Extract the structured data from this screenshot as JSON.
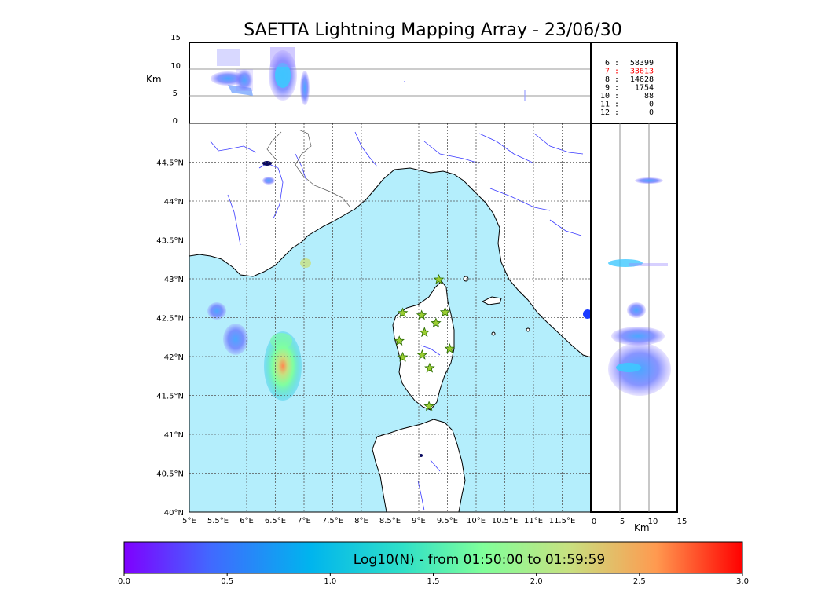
{
  "title": "SAETTA Lightning Mapping Array - 23/06/30",
  "colors": {
    "sea": "#b4eefc",
    "land": "#ffffff",
    "coast": "#000000",
    "rivers": "#3a3aff",
    "borders": "#555555",
    "grid": "#555555",
    "station_fill": "#9acd32",
    "highlight_text": "#ff0000"
  },
  "top_panel": {
    "ylabel": "Km",
    "yticks": [
      "15",
      "10",
      "5",
      "0"
    ]
  },
  "right_panel": {
    "xlabel": "Km",
    "xticks": [
      "0",
      "5",
      "10",
      "15"
    ]
  },
  "map": {
    "lon_ticks": [
      "5°E",
      "5.5°E",
      "6°E",
      "6.5°E",
      "7°E",
      "7.5°E",
      "8°E",
      "8.5°E",
      "9°E",
      "9.5°E",
      "10°E",
      "10.5°E",
      "11°E",
      "11.5°E"
    ],
    "lat_ticks": [
      "44.5°N",
      "44°N",
      "43.5°N",
      "43°N",
      "42.5°N",
      "42°N",
      "41.5°N",
      "41°N",
      "40.5°N",
      "40°N"
    ],
    "lon_range": [
      5.0,
      12.0
    ],
    "lat_range": [
      40.0,
      45.0
    ]
  },
  "stats": [
    {
      "n": "6",
      "sep": ":",
      "count": "58399",
      "highlight": false
    },
    {
      "n": "7",
      "sep": ":",
      "count": "33613",
      "highlight": true
    },
    {
      "n": "8",
      "sep": ":",
      "count": "14628",
      "highlight": false
    },
    {
      "n": "9",
      "sep": ":",
      "count": "1754",
      "highlight": false
    },
    {
      "n": "10",
      "sep": ":",
      "count": "88",
      "highlight": false
    },
    {
      "n": "11",
      "sep": ":",
      "count": "0",
      "highlight": false
    },
    {
      "n": "12",
      "sep": ":",
      "count": "0",
      "highlight": false
    }
  ],
  "colorbar": {
    "title": "Log10(N) - from 01:50:00 to 01:59:59",
    "ticks": [
      "0.0",
      "0.5",
      "1.0",
      "1.5",
      "2.0",
      "2.5",
      "3.0"
    ],
    "colors": [
      "#7f00ff",
      "#4169ff",
      "#00b4ee",
      "#2ee0c8",
      "#80ff9a",
      "#c8e080",
      "#ff9a50",
      "#ff0000"
    ]
  },
  "stations": [
    {
      "lon": 9.35,
      "lat": 42.99
    },
    {
      "lon": 8.72,
      "lat": 42.56
    },
    {
      "lon": 9.05,
      "lat": 42.53
    },
    {
      "lon": 9.46,
      "lat": 42.57
    },
    {
      "lon": 9.3,
      "lat": 42.43
    },
    {
      "lon": 9.1,
      "lat": 42.31
    },
    {
      "lon": 8.66,
      "lat": 42.2
    },
    {
      "lon": 9.54,
      "lat": 42.1
    },
    {
      "lon": 8.72,
      "lat": 41.99
    },
    {
      "lon": 9.06,
      "lat": 42.02
    },
    {
      "lon": 9.19,
      "lat": 41.85
    },
    {
      "lon": 9.18,
      "lat": 41.36
    }
  ]
}
